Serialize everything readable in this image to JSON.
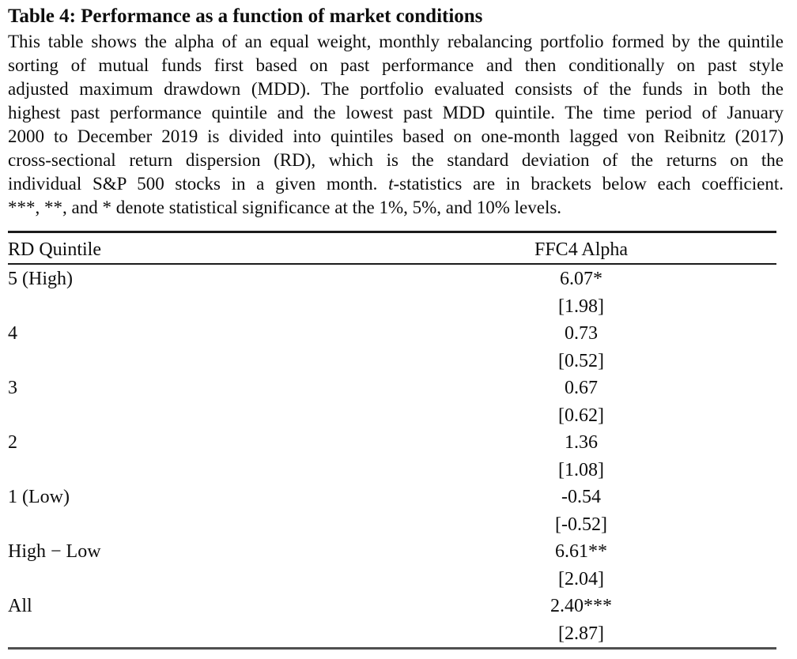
{
  "title": "Table 4: Performance as a function of market conditions",
  "caption": {
    "lines": [
      "This table shows the alpha of an equal weight, monthly rebalancing portfolio formed by the quintile",
      "sorting of mutual funds first based on past performance and then conditionally on past style",
      "adjusted maximum drawdown (MDD). The portfolio evaluated consists of the funds in both the",
      "highest past performance quintile and the lowest past MDD quintile. The time period of January",
      "2000 to December 2019 is divided into quintiles based on one-month lagged von Reibnitz (2017)",
      "cross-sectional return dispersion (RD), which is the standard deviation of the returns on the"
    ],
    "line_tstat": {
      "pre": "individual S&P 500 stocks in a given month. ",
      "italic": "t",
      "post": "-statistics are in brackets below each coefficient."
    },
    "last_line": "***, **, and * denote statistical significance at the 1%, 5%, and 10% levels."
  },
  "table": {
    "headers": {
      "col1": "RD Quintile",
      "col2": "FFC4 Alpha"
    },
    "rows": [
      {
        "label": "5 (High)",
        "coef": "6.07*",
        "tstat": "[1.98]"
      },
      {
        "label": "4",
        "coef": "0.73",
        "tstat": "[0.52]"
      },
      {
        "label": "3",
        "coef": "0.67",
        "tstat": "[0.62]"
      },
      {
        "label": "2",
        "coef": "1.36",
        "tstat": "[1.08]"
      },
      {
        "label": "1 (Low)",
        "coef": "-0.54",
        "tstat": "[-0.52]"
      },
      {
        "label": "High − Low",
        "coef": "6.61**",
        "tstat": "[2.04]"
      },
      {
        "label": "All",
        "coef": "2.40***",
        "tstat": "[2.87]"
      }
    ]
  },
  "colors": {
    "text": "#0d0d0d",
    "rule_top": "#1c1c1c",
    "rule_header": "#1c1c1c",
    "rule_bottom": "#4f4f4f",
    "background": "#ffffff"
  }
}
